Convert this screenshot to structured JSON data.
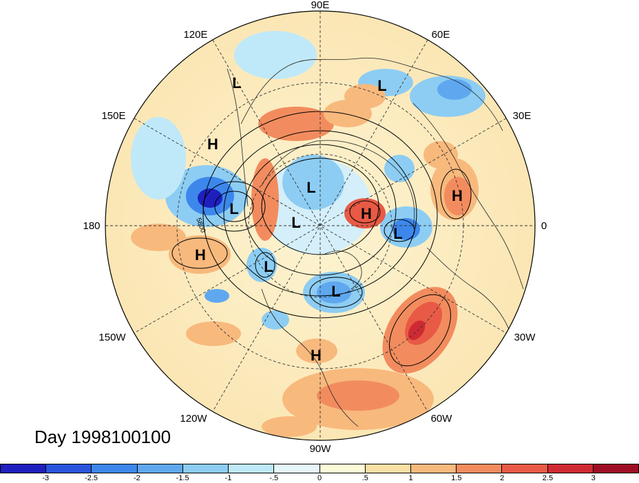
{
  "title": "Day 1998100100",
  "projection": "polar-stereographic-north",
  "longitude_labels": [
    "90E",
    "60E",
    "30E",
    "0",
    "30W",
    "60W",
    "90W",
    "120W",
    "150W",
    "180",
    "150E",
    "120E"
  ],
  "contour_label": "5800",
  "pressure_centers": [
    {
      "type": "L",
      "region": "eastern siberia"
    },
    {
      "type": "L",
      "region": "east asia"
    },
    {
      "type": "L",
      "region": "arctic siberia"
    },
    {
      "type": "L",
      "region": "arctic"
    },
    {
      "type": "L",
      "region": "north pacific"
    },
    {
      "type": "L",
      "region": "scandinavia"
    },
    {
      "type": "L",
      "region": "alaska"
    },
    {
      "type": "L",
      "region": "hudson bay"
    },
    {
      "type": "H",
      "region": "bering sea"
    },
    {
      "type": "H",
      "region": "central pacific"
    },
    {
      "type": "H",
      "region": "barents sea"
    },
    {
      "type": "H",
      "region": "north africa"
    },
    {
      "type": "H",
      "region": "gulf of mexico"
    }
  ],
  "colorbar": {
    "colors": [
      "#1f1fbe",
      "#2a55dc",
      "#3d87ec",
      "#5fa8f0",
      "#8dcdf3",
      "#bfe9f8",
      "#e6f7fb",
      "#fdfad7",
      "#fbe0a6",
      "#f8b97d",
      "#f28c5e",
      "#e85a45",
      "#cf2a34",
      "#9e0e22"
    ],
    "ticks": [
      "-3",
      "-2.5",
      "-2",
      "-1.5",
      "-1",
      "-.5",
      "0",
      ".5",
      "1",
      "1.5",
      "2",
      "2.5",
      "3"
    ]
  }
}
